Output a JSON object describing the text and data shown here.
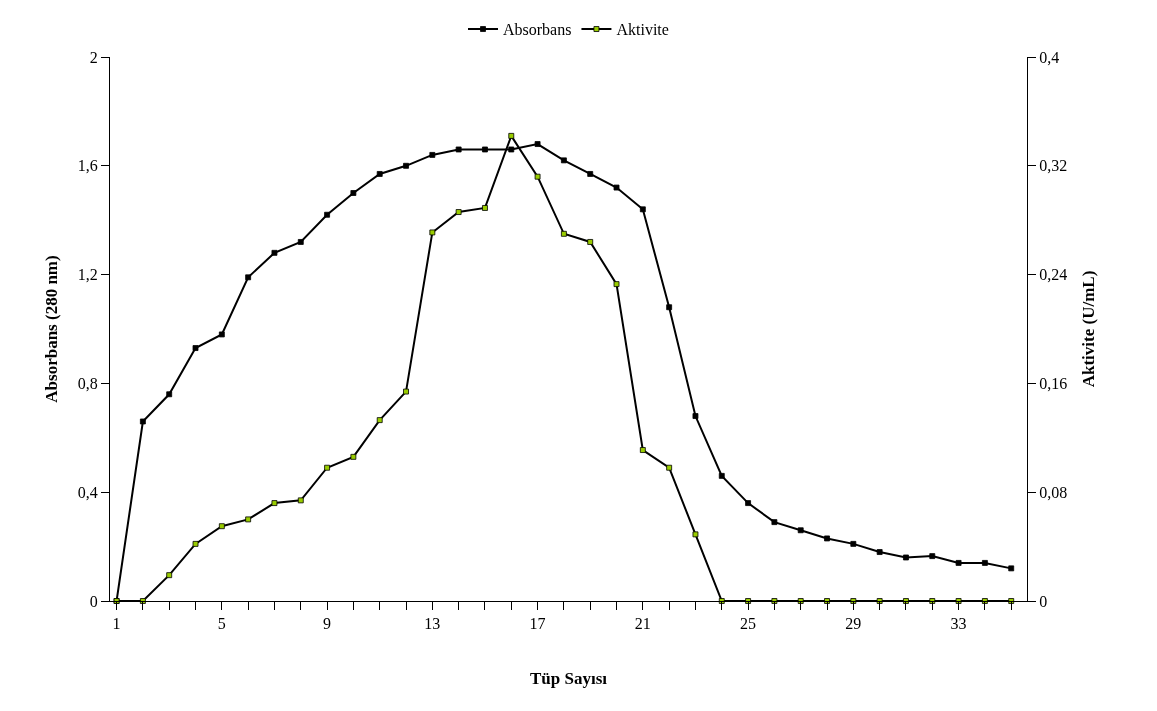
{
  "chart_data": {
    "type": "line",
    "xlabel": "Tüp Sayısı",
    "ylabel": "Absorbans (280 nm)",
    "y2label": "Aktivite (U/mL)",
    "x": [
      1,
      2,
      3,
      4,
      5,
      6,
      7,
      8,
      9,
      10,
      11,
      12,
      13,
      14,
      15,
      16,
      17,
      18,
      19,
      20,
      21,
      22,
      23,
      24,
      25,
      26,
      27,
      28,
      29,
      30,
      31,
      32,
      33,
      34,
      35
    ],
    "series": [
      {
        "name": "Absorbans",
        "color": "#000000",
        "values": [
          0,
          0.66,
          0.76,
          0.93,
          0.98,
          1.19,
          1.28,
          1.32,
          1.42,
          1.5,
          1.57,
          1.6,
          1.64,
          1.66,
          1.66,
          1.66,
          1.68,
          1.62,
          1.57,
          1.52,
          1.44,
          1.08,
          0.68,
          0.46,
          0.36,
          0.29,
          0.26,
          0.23,
          0.21,
          0.18,
          0.16,
          0.165,
          0.14,
          0.14,
          0.12
        ]
      },
      {
        "name": "Aktivite",
        "color": "#99cc00",
        "axis": "y2",
        "values": [
          0,
          0,
          0.019,
          0.042,
          0.055,
          0.06,
          0.072,
          0.074,
          0.098,
          0.106,
          0.133,
          0.154,
          0.271,
          0.286,
          0.289,
          0.342,
          0.312,
          0.27,
          0.264,
          0.233,
          0.111,
          0.098,
          0.049,
          0,
          0,
          0,
          0,
          0,
          0,
          0,
          0,
          0,
          0,
          0,
          0
        ]
      }
    ],
    "xlim": [
      0.75,
      35.6
    ],
    "xticks": [
      1,
      {
        "value": 2,
        "label": null
      },
      {
        "value": 3,
        "label": null
      },
      {
        "value": 4,
        "label": null
      },
      5,
      {
        "value": 6,
        "label": null
      },
      {
        "value": 7,
        "label": null
      },
      {
        "value": 8,
        "label": null
      },
      9,
      {
        "value": 10,
        "label": null
      },
      {
        "value": 11,
        "label": null
      },
      {
        "value": 12,
        "label": null
      },
      13,
      {
        "value": 14,
        "label": null
      },
      {
        "value": 15,
        "label": null
      },
      {
        "value": 16,
        "label": null
      },
      17,
      {
        "value": 18,
        "label": null
      },
      {
        "value": 19,
        "label": null
      },
      {
        "value": 20,
        "label": null
      },
      21,
      {
        "value": 22,
        "label": null
      },
      {
        "value": 23,
        "label": null
      },
      {
        "value": 24,
        "label": null
      },
      25,
      {
        "value": 26,
        "label": null
      },
      {
        "value": 27,
        "label": null
      },
      {
        "value": 28,
        "label": null
      },
      29,
      {
        "value": 30,
        "label": null
      },
      {
        "value": 31,
        "label": null
      },
      {
        "value": 32,
        "label": null
      },
      33,
      {
        "value": 34,
        "label": null
      },
      {
        "value": 35,
        "label": null
      }
    ],
    "ylim": [
      0,
      2
    ],
    "yticks": [
      {
        "value": 0,
        "label": "0"
      },
      {
        "value": 0.4,
        "label": "0,4"
      },
      {
        "value": 0.8,
        "label": "0,8"
      },
      {
        "value": 1.2,
        "label": "1,2"
      },
      {
        "value": 1.6,
        "label": "1,6"
      },
      {
        "value": 2,
        "label": "2"
      }
    ],
    "y2lim": [
      0,
      0.4
    ],
    "y2ticks": [
      {
        "value": 0,
        "label": "0"
      },
      {
        "value": 0.08,
        "label": "0,08"
      },
      {
        "value": 0.16,
        "label": "0,16"
      },
      {
        "value": 0.24,
        "label": "0,24"
      },
      {
        "value": 0.32,
        "label": "0,32"
      },
      {
        "value": 0.4,
        "label": "0,4"
      }
    ],
    "legend": "top",
    "marker": "square",
    "line_style": "solid"
  }
}
